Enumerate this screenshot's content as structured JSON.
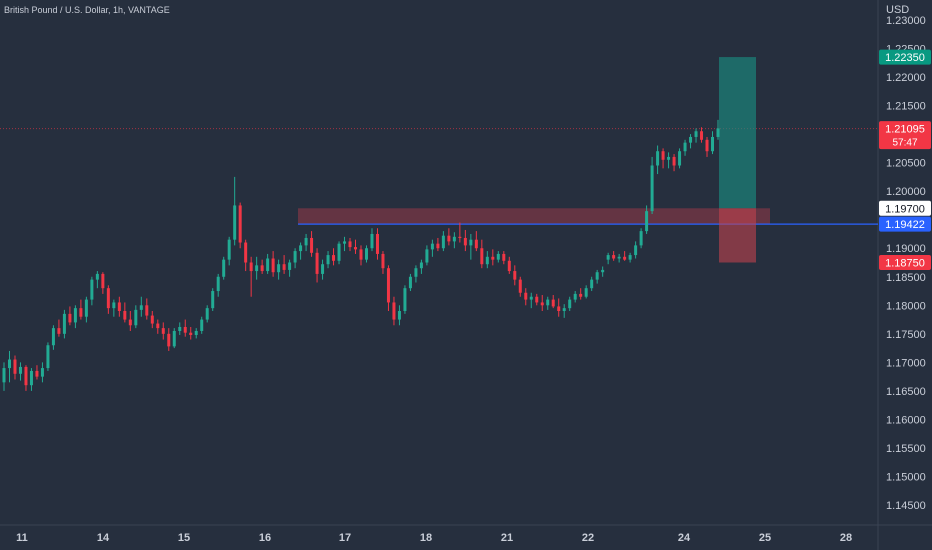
{
  "chart_title": "British Pound / U.S. Dollar, 1h, VANTAGE",
  "currency": "USD",
  "colors": {
    "background": "#262f3e",
    "up": "#22ab94",
    "down": "#f23645",
    "axis_text": "#c9ced8",
    "blue_line": "#2962ff",
    "current_label": "#f23645",
    "target_label": "#089981",
    "stop_label": "#f23645"
  },
  "chart_data": {
    "type": "candlestick",
    "title": "British Pound / U.S. Dollar, 1h, VANTAGE",
    "x_ticks": [
      "11",
      "14",
      "15",
      "16",
      "17",
      "18",
      "21",
      "22",
      "24",
      "25",
      "28"
    ],
    "y_ticks": [
      "1.23000",
      "1.22500",
      "1.22000",
      "1.21500",
      "1.20500",
      "1.20000",
      "1.19000",
      "1.18500",
      "1.18000",
      "1.17500",
      "1.17000",
      "1.16500",
      "1.16000",
      "1.15500",
      "1.15000",
      "1.14500"
    ],
    "ylim": [
      1.1415,
      1.2335
    ],
    "price_labels": {
      "target": "1.22350",
      "current": "1.21095",
      "countdown": "57:47",
      "zone_top": "1.19700",
      "blue_line": "1.19422",
      "stop": "1.18750"
    },
    "zones": {
      "resistance": [
        1.1942,
        1.197
      ],
      "trade_entry": 1.197,
      "trade_target": 1.2235,
      "trade_stop": 1.1875
    },
    "horizontal_line": 1.19422,
    "series": [
      {
        "type": "candles",
        "values": [
          [
            1.1665,
            1.17,
            1.165,
            1.169
          ],
          [
            1.169,
            1.172,
            1.1665,
            1.1705
          ],
          [
            1.1705,
            1.1712,
            1.167,
            1.168
          ],
          [
            1.168,
            1.17,
            1.1668,
            1.1692
          ],
          [
            1.1692,
            1.1695,
            1.165,
            1.166
          ],
          [
            1.166,
            1.169,
            1.165,
            1.1685
          ],
          [
            1.1685,
            1.1695,
            1.167,
            1.1675
          ],
          [
            1.1675,
            1.17,
            1.1665,
            1.169
          ],
          [
            1.169,
            1.1735,
            1.1685,
            1.173
          ],
          [
            1.173,
            1.1765,
            1.1722,
            1.176
          ],
          [
            1.176,
            1.1775,
            1.1745,
            1.175
          ],
          [
            1.175,
            1.1792,
            1.1742,
            1.1785
          ],
          [
            1.1785,
            1.1798,
            1.1765,
            1.177
          ],
          [
            1.177,
            1.18,
            1.176,
            1.1795
          ],
          [
            1.1795,
            1.181,
            1.1775,
            1.178
          ],
          [
            1.178,
            1.1815,
            1.177,
            1.181
          ],
          [
            1.181,
            1.185,
            1.18,
            1.1845
          ],
          [
            1.1845,
            1.186,
            1.183,
            1.1855
          ],
          [
            1.1855,
            1.1858,
            1.182,
            1.183
          ],
          [
            1.183,
            1.1835,
            1.1785,
            1.1795
          ],
          [
            1.1795,
            1.181,
            1.178,
            1.1805
          ],
          [
            1.1805,
            1.1815,
            1.178,
            1.179
          ],
          [
            1.179,
            1.1805,
            1.177,
            1.1775
          ],
          [
            1.1775,
            1.179,
            1.1755,
            1.1765
          ],
          [
            1.1765,
            1.18,
            1.176,
            1.1792
          ],
          [
            1.1792,
            1.1815,
            1.178,
            1.18
          ],
          [
            1.18,
            1.1812,
            1.1775,
            1.1782
          ],
          [
            1.1782,
            1.179,
            1.176,
            1.1768
          ],
          [
            1.1768,
            1.1775,
            1.175,
            1.176
          ],
          [
            1.176,
            1.177,
            1.174,
            1.175
          ],
          [
            1.175,
            1.176,
            1.172,
            1.1728
          ],
          [
            1.1728,
            1.176,
            1.1725,
            1.1755
          ],
          [
            1.1755,
            1.177,
            1.1748,
            1.1762
          ],
          [
            1.1762,
            1.1775,
            1.1745,
            1.1752
          ],
          [
            1.1752,
            1.1762,
            1.174,
            1.1748
          ],
          [
            1.1748,
            1.176,
            1.1742,
            1.1755
          ],
          [
            1.1755,
            1.178,
            1.175,
            1.1775
          ],
          [
            1.1775,
            1.18,
            1.177,
            1.1795
          ],
          [
            1.1795,
            1.183,
            1.179,
            1.1825
          ],
          [
            1.1825,
            1.1855,
            1.1815,
            1.185
          ],
          [
            1.185,
            1.1885,
            1.1845,
            1.188
          ],
          [
            1.188,
            1.192,
            1.187,
            1.1915
          ],
          [
            1.1915,
            1.2025,
            1.1905,
            1.1975
          ],
          [
            1.1975,
            1.198,
            1.19,
            1.191
          ],
          [
            1.191,
            1.1915,
            1.186,
            1.1875
          ],
          [
            1.1875,
            1.1885,
            1.1815,
            1.186
          ],
          [
            1.186,
            1.1885,
            1.1845,
            1.187
          ],
          [
            1.187,
            1.188,
            1.1855,
            1.186
          ],
          [
            1.186,
            1.189,
            1.1855,
            1.1882
          ],
          [
            1.1882,
            1.1895,
            1.185,
            1.1858
          ],
          [
            1.1858,
            1.188,
            1.1845,
            1.1872
          ],
          [
            1.1872,
            1.1888,
            1.1855,
            1.1862
          ],
          [
            1.1862,
            1.188,
            1.185,
            1.1875
          ],
          [
            1.1875,
            1.19,
            1.1865,
            1.1895
          ],
          [
            1.1895,
            1.191,
            1.188,
            1.1905
          ],
          [
            1.1905,
            1.1925,
            1.1895,
            1.1918
          ],
          [
            1.1918,
            1.193,
            1.1885,
            1.1892
          ],
          [
            1.1892,
            1.19,
            1.184,
            1.1855
          ],
          [
            1.1855,
            1.188,
            1.1845,
            1.1872
          ],
          [
            1.1872,
            1.1895,
            1.1865,
            1.1888
          ],
          [
            1.1888,
            1.19,
            1.187,
            1.1878
          ],
          [
            1.1878,
            1.1912,
            1.1872,
            1.1908
          ],
          [
            1.1908,
            1.192,
            1.1895,
            1.1912
          ],
          [
            1.1912,
            1.1918,
            1.1895,
            1.1902
          ],
          [
            1.1902,
            1.1915,
            1.189,
            1.1898
          ],
          [
            1.1898,
            1.1905,
            1.187,
            1.188
          ],
          [
            1.188,
            1.1905,
            1.1875,
            1.19
          ],
          [
            1.19,
            1.1935,
            1.1895,
            1.1925
          ],
          [
            1.1925,
            1.1935,
            1.188,
            1.189
          ],
          [
            1.189,
            1.1895,
            1.1855,
            1.1865
          ],
          [
            1.1865,
            1.187,
            1.179,
            1.1805
          ],
          [
            1.1805,
            1.1815,
            1.1765,
            1.1775
          ],
          [
            1.1775,
            1.18,
            1.1765,
            1.179
          ],
          [
            1.179,
            1.1835,
            1.1785,
            1.183
          ],
          [
            1.183,
            1.1855,
            1.1825,
            1.185
          ],
          [
            1.185,
            1.187,
            1.184,
            1.1865
          ],
          [
            1.1865,
            1.188,
            1.1855,
            1.1875
          ],
          [
            1.1875,
            1.1905,
            1.187,
            1.1898
          ],
          [
            1.1898,
            1.1915,
            1.1885,
            1.1908
          ],
          [
            1.1908,
            1.1918,
            1.1895,
            1.19
          ],
          [
            1.19,
            1.193,
            1.1895,
            1.1922
          ],
          [
            1.1922,
            1.1935,
            1.1905,
            1.1912
          ],
          [
            1.1912,
            1.1928,
            1.19,
            1.192
          ],
          [
            1.192,
            1.1945,
            1.191,
            1.1918
          ],
          [
            1.1918,
            1.1932,
            1.1895,
            1.1905
          ],
          [
            1.1905,
            1.1925,
            1.188,
            1.1915
          ],
          [
            1.1915,
            1.193,
            1.1895,
            1.19
          ],
          [
            1.19,
            1.1915,
            1.1865,
            1.1872
          ],
          [
            1.1872,
            1.1895,
            1.1865,
            1.1885
          ],
          [
            1.1885,
            1.1898,
            1.187,
            1.188
          ],
          [
            1.188,
            1.1895,
            1.1875,
            1.189
          ],
          [
            1.189,
            1.1895,
            1.1872,
            1.1878
          ],
          [
            1.1878,
            1.1885,
            1.1855,
            1.186
          ],
          [
            1.186,
            1.187,
            1.1835,
            1.1845
          ],
          [
            1.1845,
            1.185,
            1.1815,
            1.1822
          ],
          [
            1.1822,
            1.183,
            1.18,
            1.181
          ],
          [
            1.181,
            1.1822,
            1.1795,
            1.1815
          ],
          [
            1.1815,
            1.182,
            1.18,
            1.1805
          ],
          [
            1.1805,
            1.1818,
            1.179,
            1.18
          ],
          [
            1.18,
            1.1815,
            1.1792,
            1.181
          ],
          [
            1.181,
            1.1818,
            1.1795,
            1.1798
          ],
          [
            1.1798,
            1.1812,
            1.178,
            1.179
          ],
          [
            1.179,
            1.1802,
            1.1778,
            1.1795
          ],
          [
            1.1795,
            1.1815,
            1.179,
            1.181
          ],
          [
            1.181,
            1.1825,
            1.1805,
            1.182
          ],
          [
            1.182,
            1.183,
            1.181,
            1.1815
          ],
          [
            1.1815,
            1.1835,
            1.1812,
            1.183
          ],
          [
            1.183,
            1.185,
            1.1825,
            1.1845
          ],
          [
            1.1845,
            1.1862,
            1.1838,
            1.1858
          ],
          [
            1.1858,
            1.1868,
            1.185,
            1.1862
          ],
          [
            1.188,
            1.1892,
            1.1872,
            1.1888
          ],
          [
            1.1888,
            1.1895,
            1.1878,
            1.1882
          ],
          [
            1.1882,
            1.189,
            1.1875,
            1.1885
          ],
          [
            1.1885,
            1.1895,
            1.1878,
            1.188
          ],
          [
            1.188,
            1.1892,
            1.1875,
            1.1888
          ],
          [
            1.1888,
            1.1912,
            1.1882,
            1.1905
          ],
          [
            1.1905,
            1.1935,
            1.19,
            1.193
          ],
          [
            1.193,
            1.1975,
            1.1925,
            1.1965
          ],
          [
            1.1965,
            1.206,
            1.196,
            1.2045
          ],
          [
            1.2045,
            1.208,
            1.203,
            1.207
          ],
          [
            1.207,
            1.2075,
            1.204,
            1.2055
          ],
          [
            1.2055,
            1.2068,
            1.204,
            1.206
          ],
          [
            1.206,
            1.2065,
            1.2035,
            1.2045
          ],
          [
            1.2045,
            1.2075,
            1.204,
            1.207
          ],
          [
            1.207,
            1.209,
            1.2062,
            1.2085
          ],
          [
            1.2085,
            1.21,
            1.2075,
            1.2095
          ],
          [
            1.2095,
            1.211,
            1.2085,
            1.2105
          ],
          [
            1.2105,
            1.2112,
            1.2085,
            1.209
          ],
          [
            1.209,
            1.2095,
            1.206,
            1.207
          ],
          [
            1.207,
            1.2105,
            1.2065,
            1.2095
          ],
          [
            1.2095,
            1.2125,
            1.209,
            1.211
          ]
        ]
      }
    ]
  }
}
